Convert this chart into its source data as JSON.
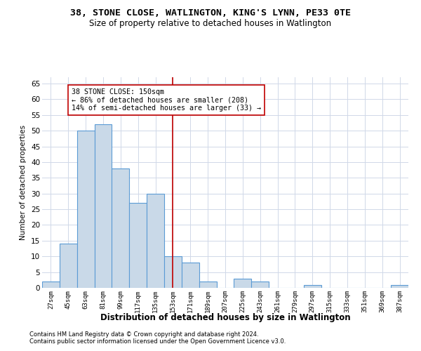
{
  "title1": "38, STONE CLOSE, WATLINGTON, KING'S LYNN, PE33 0TE",
  "title2": "Size of property relative to detached houses in Watlington",
  "xlabel": "Distribution of detached houses by size in Watlington",
  "ylabel": "Number of detached properties",
  "categories": [
    "27sqm",
    "45sqm",
    "63sqm",
    "81sqm",
    "99sqm",
    "117sqm",
    "135sqm",
    "153sqm",
    "171sqm",
    "189sqm",
    "207sqm",
    "225sqm",
    "243sqm",
    "261sqm",
    "279sqm",
    "297sqm",
    "315sqm",
    "333sqm",
    "351sqm",
    "369sqm",
    "387sqm"
  ],
  "values": [
    2,
    14,
    50,
    52,
    38,
    27,
    30,
    10,
    8,
    2,
    0,
    3,
    2,
    0,
    0,
    1,
    0,
    0,
    0,
    0,
    1
  ],
  "bar_color": "#c9d9e8",
  "bar_edge_color": "#5b9bd5",
  "vline_index": 7,
  "vline_color": "#c00000",
  "annotation_title": "38 STONE CLOSE: 150sqm",
  "annotation_line1": "← 86% of detached houses are smaller (208)",
  "annotation_line2": "14% of semi-detached houses are larger (33) →",
  "annotation_box_color": "#c00000",
  "ylim": [
    0,
    67
  ],
  "yticks": [
    0,
    5,
    10,
    15,
    20,
    25,
    30,
    35,
    40,
    45,
    50,
    55,
    60,
    65
  ],
  "footer1": "Contains HM Land Registry data © Crown copyright and database right 2024.",
  "footer2": "Contains public sector information licensed under the Open Government Licence v3.0.",
  "background_color": "#ffffff",
  "grid_color": "#d0d8e8"
}
